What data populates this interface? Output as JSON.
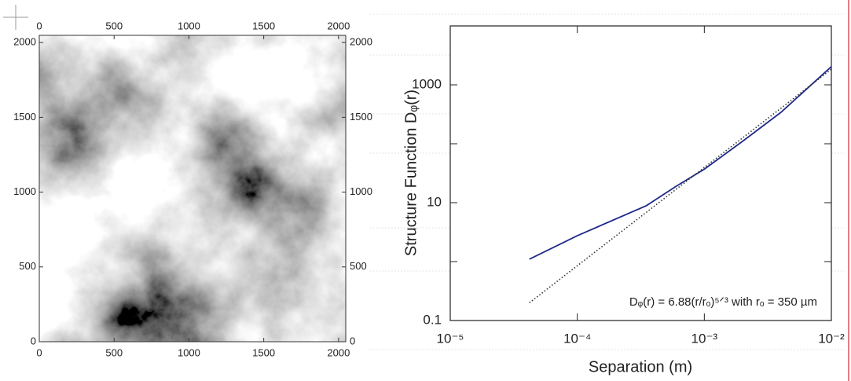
{
  "chart_data": [
    {
      "type": "image",
      "xlim": [
        0,
        2048
      ],
      "ylim": [
        0,
        2048
      ],
      "xticks": [
        0,
        500,
        1000,
        1500,
        2000
      ],
      "yticks": [
        0,
        500,
        1000,
        1500,
        2000
      ]
    },
    {
      "type": "line",
      "xlabel": "Separation (m)",
      "ylabel": "Structure Function Dᵩ(r)",
      "annotation": "Dᵩ(r) = 6.88(r/rₒ)⁵ᐟ³ with rₒ = 350 µm",
      "xscale": "log",
      "yscale": "log",
      "xlim": [
        1e-05,
        0.01
      ],
      "ylim": [
        0.1,
        10000
      ],
      "xticks": [
        {
          "value": 1e-05,
          "label": "10⁻⁵"
        },
        {
          "value": 0.0001,
          "label": "10⁻⁴"
        },
        {
          "value": 0.001,
          "label": "10⁻³"
        },
        {
          "value": 0.01,
          "label": "10⁻²"
        }
      ],
      "yticks": [
        0.1,
        10,
        1000
      ],
      "minor_yticks": [
        1,
        100,
        10000
      ],
      "series": [
        {
          "color": "#1f2a8a",
          "style": "solid",
          "x": [
            4.2e-05,
            0.0001,
            0.00035,
            0.0006,
            0.001,
            0.002,
            0.004,
            0.01
          ],
          "values": [
            1.1,
            2.75,
            8.9,
            19,
            37,
            110,
            340,
            2040
          ]
        },
        {
          "color": "#333333",
          "style": "dotted",
          "x": [
            4.2e-05,
            0.0001,
            0.001,
            0.01
          ],
          "values": [
            0.2,
            0.85,
            39.6,
            1840
          ]
        }
      ]
    }
  ]
}
